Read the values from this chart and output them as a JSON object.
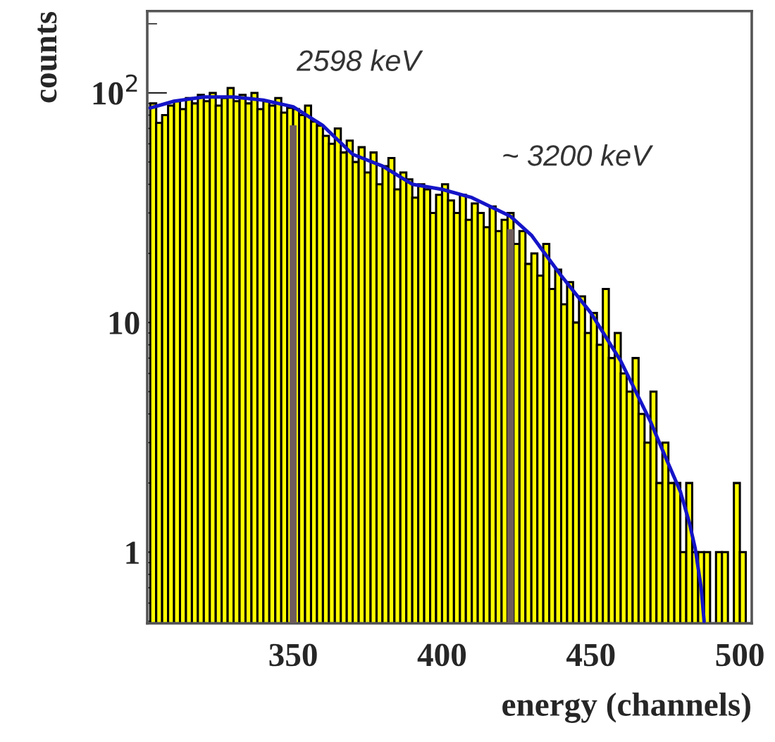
{
  "chart_data": {
    "type": "histogram",
    "xlabel": "energy (channels)",
    "ylabel": "counts",
    "bins": [
      302,
      304,
      306,
      308,
      310,
      312,
      314,
      316,
      318,
      320,
      322,
      324,
      326,
      328,
      330,
      332,
      334,
      336,
      338,
      340,
      342,
      344,
      346,
      348,
      350,
      352,
      354,
      356,
      358,
      360,
      362,
      364,
      366,
      368,
      370,
      372,
      374,
      376,
      378,
      380,
      382,
      384,
      386,
      388,
      390,
      392,
      394,
      396,
      398,
      400,
      402,
      404,
      406,
      408,
      410,
      412,
      414,
      416,
      418,
      420,
      422,
      424,
      426,
      428,
      430,
      432,
      434,
      436,
      438,
      440,
      442,
      444,
      446,
      448,
      450,
      452,
      454,
      456,
      458,
      460,
      462,
      464,
      466,
      468,
      470,
      472,
      474,
      476,
      478,
      480,
      482,
      484,
      486,
      488,
      490,
      492,
      494,
      496,
      498,
      500,
      502,
      504
    ],
    "values": [
      90,
      74,
      80,
      88,
      92,
      85,
      95,
      90,
      98,
      92,
      100,
      88,
      95,
      105,
      92,
      98,
      90,
      100,
      85,
      92,
      88,
      95,
      82,
      86,
      85,
      80,
      88,
      75,
      72,
      65,
      60,
      70,
      55,
      62,
      50,
      58,
      45,
      55,
      40,
      48,
      52,
      38,
      45,
      42,
      35,
      40,
      38,
      30,
      36,
      40,
      34,
      30,
      36,
      28,
      33,
      30,
      26,
      32,
      25,
      28,
      30,
      22,
      25,
      18,
      20,
      16,
      22,
      14,
      17,
      12,
      15,
      10,
      13,
      9,
      11,
      8,
      14,
      7,
      9,
      6,
      5,
      7,
      4,
      3,
      5,
      2,
      3,
      2,
      2,
      1,
      2,
      1,
      1,
      1,
      null,
      1,
      1,
      null,
      2,
      1,
      null
    ],
    "color": "#ffff00",
    "series": [
      {
        "type": "line",
        "color": "#1414c8",
        "x": [
          302,
          310,
          320,
          330,
          340,
          350,
          360,
          370,
          380,
          390,
          400,
          410,
          423,
          430,
          440,
          450,
          460,
          470,
          475,
          480,
          483,
          485,
          487,
          488
        ],
        "values": [
          86,
          92,
          96,
          96,
          93,
          87,
          72,
          54,
          48,
          40,
          38,
          35,
          29,
          24,
          16,
          11,
          6.8,
          3.7,
          2.6,
          1.84,
          1.35,
          1.04,
          0.7,
          0.5
        ]
      }
    ],
    "ref_lines": [
      {
        "axis": "x",
        "value": 350,
        "label": "2598 keV",
        "color": "#6e5c5c"
      },
      {
        "axis": "x",
        "value": 423,
        "label": "~ 3200 keV",
        "color": "#6e5c5c"
      }
    ],
    "xlim": [
      301,
      504
    ],
    "xticks": [
      350,
      400,
      450,
      500
    ],
    "ylim": [
      0.49,
      227
    ],
    "yticks": [
      1,
      10,
      {
        "value": 100,
        "label": "10$^{2}$"
      }
    ],
    "log": "y",
    "grid": false,
    "legend": false
  }
}
